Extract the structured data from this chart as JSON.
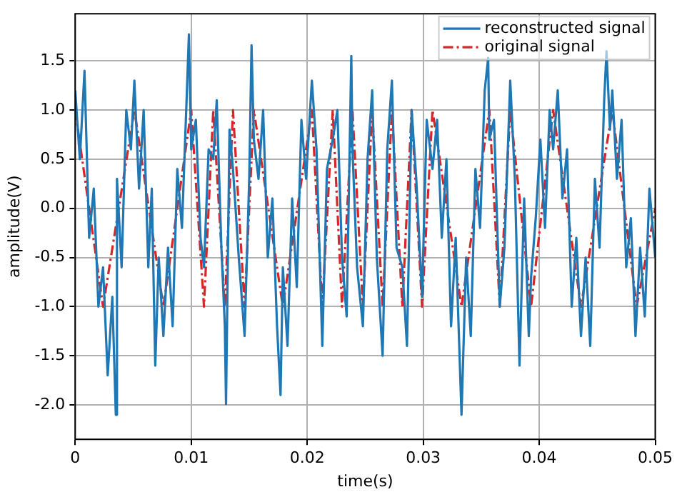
{
  "chart_data": {
    "type": "line",
    "xlabel": "time(s)",
    "ylabel": "amplitude(V)",
    "xlim": [
      0,
      0.05
    ],
    "ylim": [
      -2.35,
      1.98
    ],
    "xticks": [
      0,
      0.01,
      0.02,
      0.03,
      0.04,
      0.05
    ],
    "yticks": [
      {
        "value": -2,
        "label": "-2.0"
      },
      {
        "value": -1.5,
        "label": "-1.5"
      },
      {
        "value": -1,
        "label": "-1.0"
      },
      {
        "value": -0.5,
        "label": "-0.5"
      },
      {
        "value": 0,
        "label": "0.0"
      },
      {
        "value": 0.5,
        "label": "0.5"
      },
      {
        "value": 1,
        "label": "1.0"
      },
      {
        "value": 1.5,
        "label": "1.5"
      }
    ],
    "grid": true,
    "legend": "top right",
    "marker": "none",
    "series": [
      {
        "name": "reconstructed signal",
        "color": "#1f77b4",
        "line_style": "solid",
        "x": [
          0,
          0.0004,
          0.0008,
          0.0012,
          0.0016,
          0.002,
          0.0024,
          0.0028,
          0.0032,
          0.0035,
          0.0036,
          0.004,
          0.0044,
          0.0048,
          0.0051,
          0.0055,
          0.0059,
          0.0063,
          0.0066,
          0.0069,
          0.0072,
          0.0076,
          0.008,
          0.0084,
          0.0088,
          0.0092,
          0.0096,
          0.0098,
          0.01,
          0.0104,
          0.0108,
          0.0111,
          0.0115,
          0.0119,
          0.0122,
          0.0126,
          0.0129,
          0.013,
          0.0133,
          0.0136,
          0.0141,
          0.0146,
          0.015,
          0.0152,
          0.0154,
          0.0158,
          0.0162,
          0.0166,
          0.017,
          0.0174,
          0.0177,
          0.0179,
          0.0183,
          0.0187,
          0.0191,
          0.0195,
          0.0199,
          0.0204,
          0.0208,
          0.0213,
          0.0217,
          0.0222,
          0.0226,
          0.023,
          0.0234,
          0.0238,
          0.0239,
          0.0243,
          0.0248,
          0.0252,
          0.0256,
          0.026,
          0.0265,
          0.0269,
          0.0273,
          0.0277,
          0.0282,
          0.0286,
          0.029,
          0.0294,
          0.0299,
          0.0303,
          0.0308,
          0.0312,
          0.0316,
          0.032,
          0.0324,
          0.0328,
          0.0333,
          0.0337,
          0.0341,
          0.0345,
          0.0349,
          0.0353,
          0.0356,
          0.0357,
          0.0361,
          0.0366,
          0.037,
          0.0375,
          0.0379,
          0.0383,
          0.0387,
          0.0391,
          0.0393,
          0.0397,
          0.0401,
          0.0405,
          0.0409,
          0.0412,
          0.0416,
          0.042,
          0.0424,
          0.0428,
          0.0432,
          0.0436,
          0.044,
          0.0444,
          0.0448,
          0.0452,
          0.0456,
          0.0458,
          0.0461,
          0.0463,
          0.0467,
          0.0471,
          0.0475,
          0.0479,
          0.0483,
          0.0487,
          0.0491,
          0.0495,
          0.05
        ],
        "values": [
          1.2,
          0.5,
          1.4,
          -0.3,
          0.2,
          -1.0,
          -0.6,
          -1.7,
          -0.9,
          -2.1,
          0.3,
          -0.6,
          1.0,
          0.6,
          1.3,
          0.2,
          1.0,
          -0.6,
          0.2,
          -1.6,
          -0.5,
          -1.3,
          -0.4,
          -1.2,
          0.4,
          -0.2,
          1.1,
          1.77,
          0.6,
          0.9,
          -0.3,
          -0.6,
          0.6,
          0.5,
          1.1,
          -0.4,
          -1.2,
          -1.99,
          0.8,
          0.4,
          -0.5,
          -1.3,
          0.3,
          1.66,
          0.7,
          0.3,
          1.0,
          -0.5,
          0.1,
          -1.2,
          -1.9,
          -0.6,
          -1.4,
          0.1,
          -0.8,
          0.9,
          0.3,
          1.3,
          0.6,
          -1.4,
          0.4,
          0.7,
          1.0,
          -0.5,
          -1.1,
          1.55,
          0.6,
          -0.6,
          -1.2,
          0.5,
          1.2,
          -0.5,
          -1.5,
          0.6,
          1.3,
          -0.4,
          -0.6,
          -1.4,
          1.0,
          0.3,
          -0.9,
          0.9,
          0.4,
          0.9,
          -0.3,
          0.5,
          -1.2,
          -0.3,
          -2.1,
          -0.5,
          -1.3,
          0.4,
          -0.2,
          1.2,
          1.53,
          0.7,
          0.9,
          -1.0,
          -0.4,
          1.3,
          0.3,
          -1.6,
          0.1,
          -1.3,
          -0.7,
          -0.1,
          0.7,
          -0.2,
          1.0,
          0.6,
          1.2,
          0.1,
          0.6,
          -1.0,
          -0.3,
          -1.3,
          -0.5,
          -1.4,
          0.3,
          -0.4,
          1.1,
          1.6,
          0.8,
          1.2,
          0.3,
          0.9,
          -0.6,
          -0.1,
          -1.3,
          -0.4,
          -1.1,
          0.2,
          -0.5
        ]
      },
      {
        "name": "original signal",
        "color": "#d62728",
        "line_style": "dashed",
        "x": [
          0,
          0.0024,
          0.0051,
          0.0076,
          0.01,
          0.0111,
          0.0119,
          0.0129,
          0.0136,
          0.0146,
          0.0154,
          0.0179,
          0.0204,
          0.0213,
          0.0222,
          0.023,
          0.0239,
          0.0248,
          0.0256,
          0.0265,
          0.0273,
          0.0282,
          0.029,
          0.0299,
          0.0308,
          0.0333,
          0.0357,
          0.0366,
          0.0375,
          0.0393,
          0.0412,
          0.0436,
          0.0463,
          0.0484,
          0.05
        ],
        "values": [
          1,
          -1,
          1,
          -1,
          1,
          -1,
          1,
          -1,
          1,
          -1,
          1,
          -1,
          1,
          -1,
          1,
          -1,
          1,
          -1,
          1,
          -1,
          1,
          -1,
          1,
          -1,
          1,
          -1,
          1,
          -1,
          1,
          -1,
          1,
          -1,
          1,
          -1,
          0
        ]
      }
    ]
  }
}
